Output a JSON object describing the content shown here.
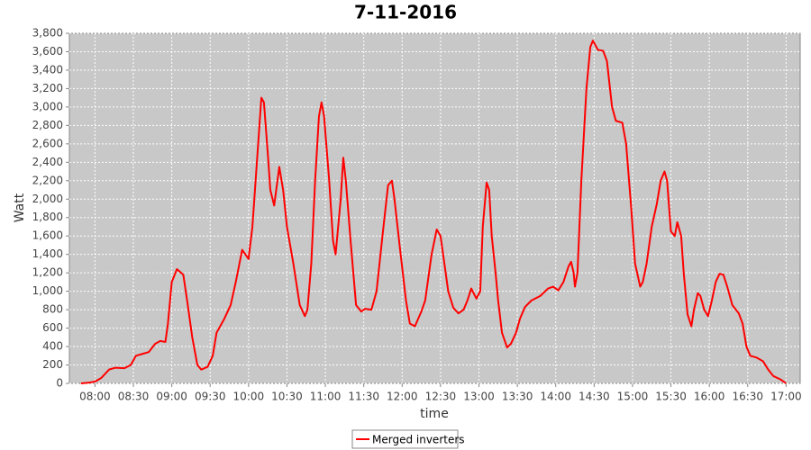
{
  "chart_data": {
    "type": "line",
    "title": "7-11-2016",
    "xlabel": "time",
    "ylabel": "Watt",
    "x": [
      469,
      476,
      480,
      485,
      491,
      496,
      503,
      508,
      512,
      517,
      522,
      527,
      531,
      535,
      537,
      540,
      544,
      549,
      552,
      556,
      560,
      563,
      568,
      572,
      575,
      581,
      586,
      590,
      595,
      600,
      603,
      607,
      610,
      612,
      615,
      617,
      620,
      624,
      627,
      630,
      635,
      640,
      644,
      646,
      649,
      652,
      655,
      657,
      659,
      663,
      666,
      668,
      672,
      674,
      676,
      680,
      684,
      688,
      691,
      696,
      700,
      705,
      709,
      712,
      714,
      718,
      723,
      726,
      730,
      735,
      738,
      743,
      747,
      750,
      753,
      756,
      760,
      764,
      768,
      771,
      774,
      778,
      781,
      783,
      786,
      788,
      790,
      793,
      795,
      798,
      802,
      805,
      809,
      812,
      816,
      821,
      828,
      834,
      838,
      842,
      846,
      850,
      852,
      854,
      855,
      857,
      860,
      864,
      867,
      869,
      873,
      877,
      880,
      884,
      887,
      892,
      895,
      899,
      902,
      906,
      908,
      911,
      915,
      919,
      922,
      925,
      927,
      930,
      933,
      935,
      938,
      940,
      943,
      946,
      948,
      951,
      953,
      956,
      959,
      962,
      965,
      968,
      971,
      974,
      978,
      983,
      986,
      989,
      992,
      997,
      1002,
      1006,
      1010,
      1016,
      1020
    ],
    "series": [
      {
        "name": "Merged inverters",
        "color": "#ff0000",
        "values": [
          0,
          10,
          20,
          60,
          150,
          170,
          165,
          200,
          300,
          320,
          340,
          430,
          460,
          450,
          650,
          1100,
          1240,
          1180,
          900,
          500,
          200,
          150,
          180,
          300,
          550,
          700,
          850,
          1100,
          1450,
          1350,
          1700,
          2500,
          3100,
          3050,
          2500,
          2100,
          1930,
          2350,
          2100,
          1700,
          1300,
          850,
          730,
          800,
          1300,
          2200,
          2900,
          3050,
          2900,
          2200,
          1550,
          1400,
          2000,
          2450,
          2200,
          1500,
          850,
          780,
          810,
          800,
          1000,
          1650,
          2150,
          2200,
          2000,
          1500,
          900,
          650,
          620,
          780,
          900,
          1400,
          1670,
          1600,
          1300,
          1000,
          820,
          760,
          800,
          900,
          1030,
          920,
          1000,
          1700,
          2180,
          2100,
          1600,
          1200,
          900,
          550,
          390,
          430,
          550,
          700,
          830,
          900,
          950,
          1030,
          1050,
          1010,
          1100,
          1270,
          1320,
          1200,
          1050,
          1200,
          2200,
          3200,
          3650,
          3720,
          3620,
          3610,
          3500,
          3000,
          2850,
          2830,
          2600,
          1900,
          1300,
          1050,
          1100,
          1300,
          1700,
          1950,
          2200,
          2300,
          2200,
          1650,
          1600,
          1750,
          1600,
          1200,
          750,
          620,
          800,
          980,
          950,
          800,
          730,
          900,
          1100,
          1190,
          1180,
          1050,
          850,
          760,
          650,
          400,
          300,
          280,
          240,
          150,
          80,
          40,
          0
        ]
      }
    ],
    "xlim": [
      460,
      1031
    ],
    "xticks": [
      {
        "value": 480,
        "label": "08:00"
      },
      {
        "value": 510,
        "label": "08:30"
      },
      {
        "value": 540,
        "label": "09:00"
      },
      {
        "value": 570,
        "label": "09:30"
      },
      {
        "value": 600,
        "label": "10:00"
      },
      {
        "value": 630,
        "label": "10:30"
      },
      {
        "value": 660,
        "label": "11:00"
      },
      {
        "value": 690,
        "label": "11:30"
      },
      {
        "value": 720,
        "label": "12:00"
      },
      {
        "value": 750,
        "label": "12:30"
      },
      {
        "value": 780,
        "label": "13:00"
      },
      {
        "value": 810,
        "label": "13:30"
      },
      {
        "value": 840,
        "label": "14:00"
      },
      {
        "value": 870,
        "label": "14:30"
      },
      {
        "value": 900,
        "label": "15:00"
      },
      {
        "value": 930,
        "label": "15:30"
      },
      {
        "value": 960,
        "label": "16:00"
      },
      {
        "value": 990,
        "label": "16:30"
      },
      {
        "value": 1020,
        "label": "17:00"
      }
    ],
    "ylim": [
      0,
      3800
    ],
    "yticks": [
      0,
      200,
      400,
      600,
      800,
      {
        "value": 1000,
        "label": "1,000"
      },
      {
        "value": 1200,
        "label": "1,200"
      },
      {
        "value": 1400,
        "label": "1,400"
      },
      {
        "value": 1600,
        "label": "1,600"
      },
      {
        "value": 1800,
        "label": "1,800"
      },
      {
        "value": 2000,
        "label": "2,000"
      },
      {
        "value": 2200,
        "label": "2,200"
      },
      {
        "value": 2400,
        "label": "2,400"
      },
      {
        "value": 2600,
        "label": "2,600"
      },
      {
        "value": 2800,
        "label": "2,800"
      },
      {
        "value": 3000,
        "label": "3,000"
      },
      {
        "value": 3200,
        "label": "3,200"
      },
      {
        "value": 3400,
        "label": "3,400"
      },
      {
        "value": 3600,
        "label": "3,600"
      },
      {
        "value": 3800,
        "label": "3,800"
      }
    ],
    "grid": true,
    "legend": "bottom"
  }
}
